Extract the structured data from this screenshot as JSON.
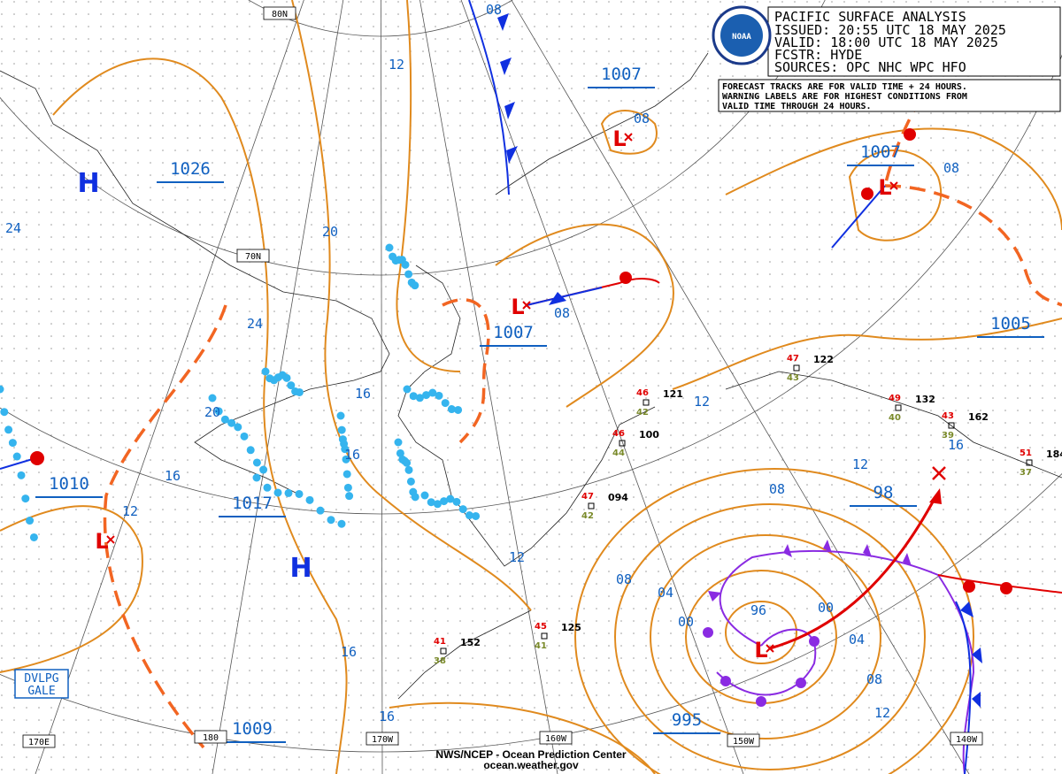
{
  "header": {
    "lines": [
      "PACIFIC SURFACE ANALYSIS",
      "ISSUED: 20:55 UTC 18 MAY 2025",
      "VALID:  18:00 UTC 18 MAY 2025",
      "FCSTR:  HYDE",
      "SOURCES: OPC NHC WPC HFO"
    ]
  },
  "notice": {
    "lines": [
      "FORECAST TRACKS ARE FOR VALID TIME + 24 HOURS.",
      "WARNING LABELS ARE FOR HIGHEST CONDITIONS FROM",
      "VALID TIME THROUGH 24 HOURS."
    ]
  },
  "logo": "NOAA",
  "pressure_labels": [
    "1026",
    "1007",
    "1007",
    "1007",
    "1005",
    "1010",
    "1017",
    "98",
    "995",
    "1009"
  ],
  "isobar_labels": [
    "12",
    "08",
    "08",
    "08",
    "24",
    "20",
    "24",
    "08",
    "20",
    "16",
    "16",
    "16",
    "12",
    "12",
    "16",
    "12",
    "08",
    "12",
    "08",
    "04",
    "00",
    "96",
    "00",
    "04",
    "08",
    "12",
    "16",
    "16"
  ],
  "highs": [
    "H",
    "H"
  ],
  "lows": [
    "L",
    "L",
    "L",
    "L",
    "L"
  ],
  "grid_labels": [
    "80N",
    "70N",
    "170E",
    "180",
    "170W",
    "160W",
    "150W",
    "140W"
  ],
  "stations": [
    "122",
    "121",
    "100",
    "094",
    "125",
    "152",
    "132",
    "162",
    "184"
  ],
  "station_temps": [
    "47",
    "46",
    "46",
    "47",
    "45",
    "41",
    "49",
    "43",
    "51"
  ],
  "station_dews": [
    "43",
    "42",
    "44",
    "42",
    "41",
    "38",
    "40",
    "39",
    "37"
  ],
  "warning": {
    "lines": [
      "DVLPG",
      "GALE"
    ]
  },
  "footer": {
    "lines": [
      "NWS/NCEP - Ocean Prediction Center",
      "ocean.weather.gov"
    ]
  }
}
